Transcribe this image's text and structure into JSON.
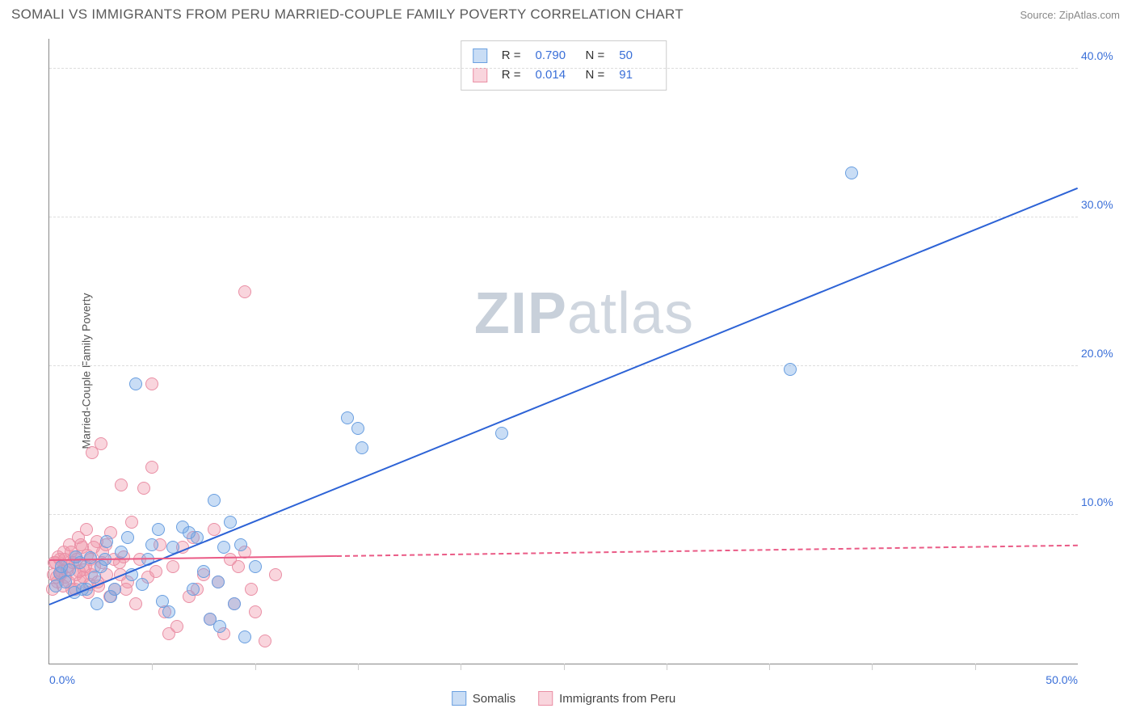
{
  "header": {
    "title": "SOMALI VS IMMIGRANTS FROM PERU MARRIED-COUPLE FAMILY POVERTY CORRELATION CHART",
    "source": "Source: ZipAtlas.com"
  },
  "chart": {
    "type": "scatter",
    "y_label": "Married-Couple Family Poverty",
    "watermark": "ZIPatlas",
    "background_color": "#ffffff",
    "grid_color": "#dddddd",
    "axis_color": "#888888",
    "tick_color": "#3a6fd8",
    "xlim": [
      0,
      50
    ],
    "ylim": [
      0,
      42
    ],
    "xticks": [
      {
        "v": 0,
        "label": "0.0%"
      },
      {
        "v": 50,
        "label": "50.0%"
      }
    ],
    "xminor": [
      5,
      10,
      15,
      20,
      25,
      30,
      35,
      40,
      45
    ],
    "yticks": [
      {
        "v": 10,
        "label": "10.0%"
      },
      {
        "v": 20,
        "label": "20.0%"
      },
      {
        "v": 30,
        "label": "30.0%"
      },
      {
        "v": 40,
        "label": "40.0%"
      }
    ],
    "series": [
      {
        "id": "s1",
        "name": "Somalis",
        "fill": "rgba(120,170,230,0.40)",
        "stroke": "#6a9fe0",
        "R": "0.790",
        "N": "50",
        "trend": {
          "x0": 0,
          "y0": 4.0,
          "x1": 50,
          "y1": 32.0,
          "color": "#2d63d6",
          "solid_until": 50
        },
        "points": [
          [
            0.3,
            5.2
          ],
          [
            0.5,
            6.1
          ],
          [
            0.8,
            5.5
          ],
          [
            1.0,
            6.3
          ],
          [
            1.2,
            4.8
          ],
          [
            1.5,
            6.8
          ],
          [
            1.8,
            5.0
          ],
          [
            2.0,
            7.1
          ],
          [
            2.2,
            5.8
          ],
          [
            2.5,
            6.5
          ],
          [
            2.8,
            8.2
          ],
          [
            3.0,
            4.5
          ],
          [
            3.5,
            7.5
          ],
          [
            4.0,
            6.0
          ],
          [
            4.2,
            18.8
          ],
          [
            4.5,
            5.3
          ],
          [
            5.0,
            8.0
          ],
          [
            5.3,
            9.0
          ],
          [
            5.8,
            3.5
          ],
          [
            6.0,
            7.8
          ],
          [
            6.5,
            9.2
          ],
          [
            7.0,
            5.0
          ],
          [
            7.2,
            8.5
          ],
          [
            7.5,
            6.2
          ],
          [
            8.0,
            11.0
          ],
          [
            8.3,
            2.5
          ],
          [
            8.5,
            7.8
          ],
          [
            8.8,
            9.5
          ],
          [
            9.0,
            4.0
          ],
          [
            9.3,
            8.0
          ],
          [
            9.5,
            1.8
          ],
          [
            10.0,
            6.5
          ],
          [
            14.5,
            16.5
          ],
          [
            15.0,
            15.8
          ],
          [
            15.2,
            14.5
          ],
          [
            22.0,
            15.5
          ],
          [
            36.0,
            19.8
          ],
          [
            39.0,
            33.0
          ],
          [
            3.2,
            5.0
          ],
          [
            4.8,
            7.0
          ],
          [
            5.5,
            4.2
          ],
          [
            6.8,
            8.8
          ],
          [
            7.8,
            3.0
          ],
          [
            8.2,
            5.5
          ],
          [
            1.3,
            7.2
          ],
          [
            2.3,
            4.0
          ],
          [
            3.8,
            8.5
          ],
          [
            0.6,
            6.5
          ],
          [
            1.6,
            5.0
          ],
          [
            2.7,
            7.0
          ]
        ]
      },
      {
        "id": "s2",
        "name": "Immigrants from Peru",
        "fill": "rgba(240,150,170,0.40)",
        "stroke": "#ea8fa5",
        "R": "0.014",
        "N": "91",
        "trend": {
          "x0": 0,
          "y0": 7.0,
          "x1": 50,
          "y1": 8.0,
          "color": "#ea5b86",
          "solid_until": 14
        },
        "points": [
          [
            0.2,
            6.0
          ],
          [
            0.3,
            6.8
          ],
          [
            0.4,
            5.5
          ],
          [
            0.5,
            7.0
          ],
          [
            0.6,
            6.2
          ],
          [
            0.7,
            7.5
          ],
          [
            0.8,
            5.8
          ],
          [
            0.9,
            6.5
          ],
          [
            1.0,
            8.0
          ],
          [
            1.1,
            5.0
          ],
          [
            1.2,
            7.2
          ],
          [
            1.3,
            6.0
          ],
          [
            1.4,
            8.5
          ],
          [
            1.5,
            5.5
          ],
          [
            1.6,
            7.8
          ],
          [
            1.7,
            6.3
          ],
          [
            1.8,
            9.0
          ],
          [
            1.9,
            4.8
          ],
          [
            2.0,
            7.0
          ],
          [
            2.1,
            14.2
          ],
          [
            2.5,
            14.8
          ],
          [
            2.2,
            6.5
          ],
          [
            2.3,
            8.2
          ],
          [
            2.4,
            5.2
          ],
          [
            2.6,
            7.5
          ],
          [
            2.8,
            6.0
          ],
          [
            3.0,
            8.8
          ],
          [
            3.2,
            5.0
          ],
          [
            3.4,
            6.8
          ],
          [
            3.5,
            12.0
          ],
          [
            3.6,
            7.2
          ],
          [
            3.8,
            5.5
          ],
          [
            4.0,
            9.5
          ],
          [
            4.2,
            4.0
          ],
          [
            4.4,
            7.0
          ],
          [
            4.6,
            11.8
          ],
          [
            4.8,
            5.8
          ],
          [
            5.0,
            13.2
          ],
          [
            5.2,
            6.2
          ],
          [
            5.4,
            8.0
          ],
          [
            5.0,
            18.8
          ],
          [
            5.6,
            3.5
          ],
          [
            5.8,
            2.0
          ],
          [
            6.0,
            6.5
          ],
          [
            6.2,
            2.5
          ],
          [
            6.5,
            7.8
          ],
          [
            6.8,
            4.5
          ],
          [
            7.0,
            8.5
          ],
          [
            7.2,
            5.0
          ],
          [
            7.5,
            6.0
          ],
          [
            7.8,
            3.0
          ],
          [
            8.0,
            9.0
          ],
          [
            8.2,
            5.5
          ],
          [
            8.5,
            2.0
          ],
          [
            8.8,
            7.0
          ],
          [
            9.0,
            4.0
          ],
          [
            9.2,
            6.5
          ],
          [
            9.5,
            7.5
          ],
          [
            9.8,
            5.0
          ],
          [
            10.0,
            3.5
          ],
          [
            10.5,
            1.5
          ],
          [
            11.0,
            6.0
          ],
          [
            9.5,
            25.0
          ],
          [
            0.15,
            5.0
          ],
          [
            0.25,
            6.8
          ],
          [
            0.35,
            5.8
          ],
          [
            0.45,
            7.2
          ],
          [
            0.55,
            6.0
          ],
          [
            0.65,
            5.2
          ],
          [
            0.75,
            7.0
          ],
          [
            0.85,
            6.3
          ],
          [
            0.95,
            5.5
          ],
          [
            1.05,
            7.5
          ],
          [
            1.15,
            6.8
          ],
          [
            1.25,
            5.0
          ],
          [
            1.35,
            7.0
          ],
          [
            1.45,
            6.2
          ],
          [
            1.55,
            8.0
          ],
          [
            1.65,
            5.8
          ],
          [
            1.75,
            6.5
          ],
          [
            1.85,
            7.3
          ],
          [
            1.95,
            5.3
          ],
          [
            2.05,
            6.0
          ],
          [
            2.15,
            7.8
          ],
          [
            2.35,
            5.5
          ],
          [
            2.55,
            6.8
          ],
          [
            2.75,
            8.0
          ],
          [
            2.95,
            4.5
          ],
          [
            3.15,
            7.0
          ],
          [
            3.45,
            6.0
          ],
          [
            3.75,
            5.0
          ]
        ]
      }
    ],
    "bottom_legend": [
      {
        "swatch_fill": "rgba(120,170,230,0.40)",
        "swatch_stroke": "#6a9fe0",
        "label": "Somalis"
      },
      {
        "swatch_fill": "rgba(240,150,170,0.40)",
        "swatch_stroke": "#ea8fa5",
        "label": "Immigrants from Peru"
      }
    ]
  }
}
